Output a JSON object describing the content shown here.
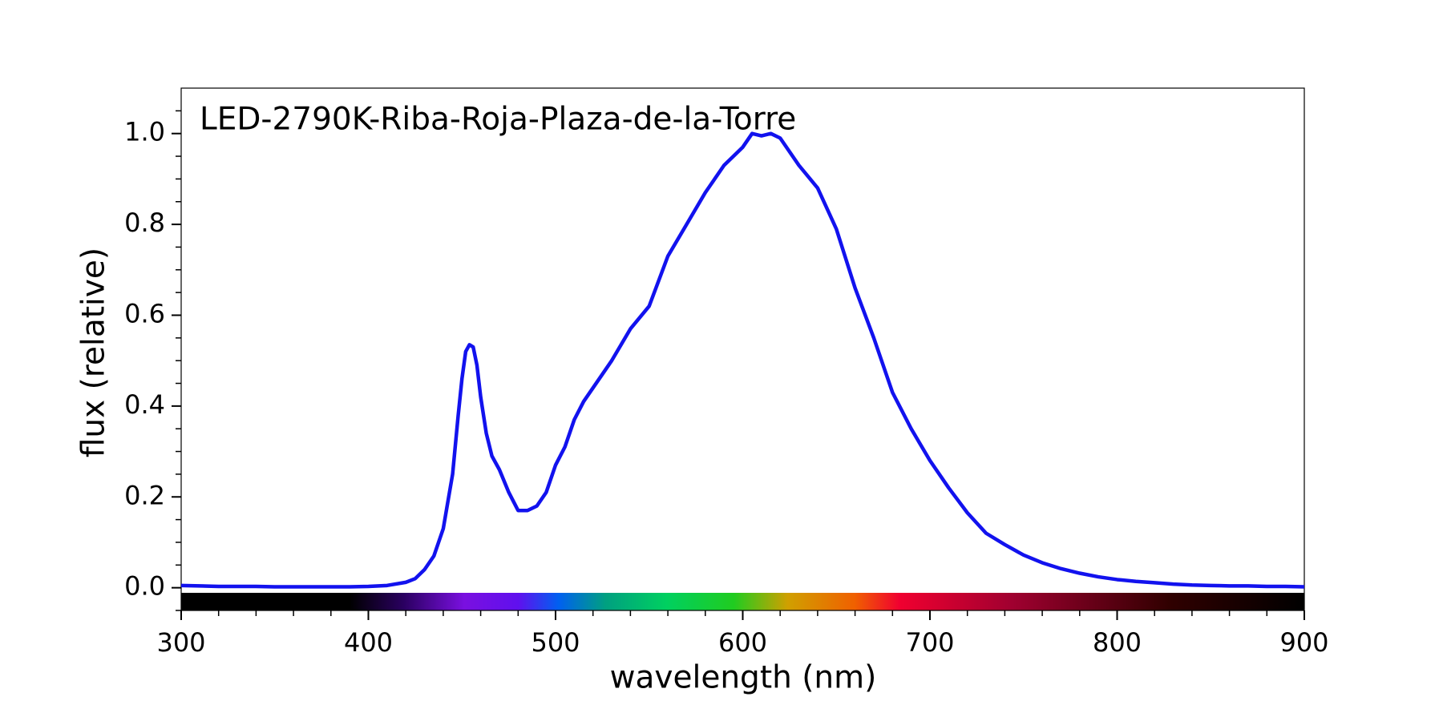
{
  "chart_data": {
    "type": "line",
    "title": "LED-2790K-Riba-Roja-Plaza-de-la-Torre",
    "xlabel": "wavelength (nm)",
    "ylabel": "flux (relative)",
    "xlim": [
      300,
      900
    ],
    "ylim": [
      -0.05,
      1.1
    ],
    "xticks": [
      300,
      400,
      500,
      600,
      700,
      800,
      900
    ],
    "yticks": [
      {
        "value": 0,
        "label": "0.0"
      },
      0.2,
      0.4,
      0.6,
      0.8,
      {
        "value": 1,
        "label": "1.0"
      }
    ],
    "xminorticks": [
      320,
      340,
      360,
      380,
      420,
      440,
      460,
      480,
      520,
      540,
      560,
      580,
      620,
      640,
      660,
      680,
      720,
      740,
      760,
      780,
      820,
      840,
      860,
      880
    ],
    "yminorticks": [
      -0.05,
      0.05,
      0.1,
      0.15,
      0.25,
      0.3,
      0.35,
      0.45,
      0.5,
      0.55,
      0.65,
      0.7,
      0.75,
      0.85,
      0.9,
      0.95,
      1.05
    ],
    "grid": false,
    "series": [
      {
        "name": "flux",
        "color": "#1212ee",
        "x": [
          300,
          310,
          320,
          330,
          340,
          350,
          360,
          370,
          380,
          390,
          400,
          410,
          420,
          425,
          430,
          435,
          440,
          445,
          448,
          450,
          452,
          454,
          456,
          458,
          460,
          463,
          466,
          470,
          475,
          480,
          485,
          490,
          495,
          500,
          505,
          510,
          515,
          520,
          525,
          530,
          540,
          550,
          560,
          570,
          580,
          590,
          600,
          605,
          610,
          615,
          620,
          625,
          630,
          640,
          650,
          660,
          670,
          680,
          690,
          700,
          710,
          720,
          730,
          740,
          750,
          760,
          770,
          780,
          790,
          800,
          810,
          820,
          830,
          840,
          850,
          860,
          870,
          880,
          890,
          900
        ],
        "values": [
          0.005,
          0.004,
          0.003,
          0.003,
          0.003,
          0.002,
          0.002,
          0.002,
          0.002,
          0.002,
          0.003,
          0.005,
          0.012,
          0.02,
          0.04,
          0.07,
          0.13,
          0.25,
          0.38,
          0.46,
          0.52,
          0.535,
          0.53,
          0.49,
          0.42,
          0.34,
          0.29,
          0.26,
          0.21,
          0.17,
          0.17,
          0.18,
          0.21,
          0.27,
          0.31,
          0.37,
          0.41,
          0.44,
          0.47,
          0.5,
          0.57,
          0.62,
          0.73,
          0.8,
          0.87,
          0.93,
          0.97,
          1.0,
          0.995,
          1.0,
          0.99,
          0.96,
          0.93,
          0.88,
          0.79,
          0.66,
          0.55,
          0.43,
          0.35,
          0.28,
          0.22,
          0.165,
          0.12,
          0.095,
          0.072,
          0.055,
          0.042,
          0.032,
          0.024,
          0.018,
          0.014,
          0.011,
          0.008,
          0.006,
          0.005,
          0.004,
          0.004,
          0.003,
          0.003,
          0.002
        ]
      }
    ]
  }
}
